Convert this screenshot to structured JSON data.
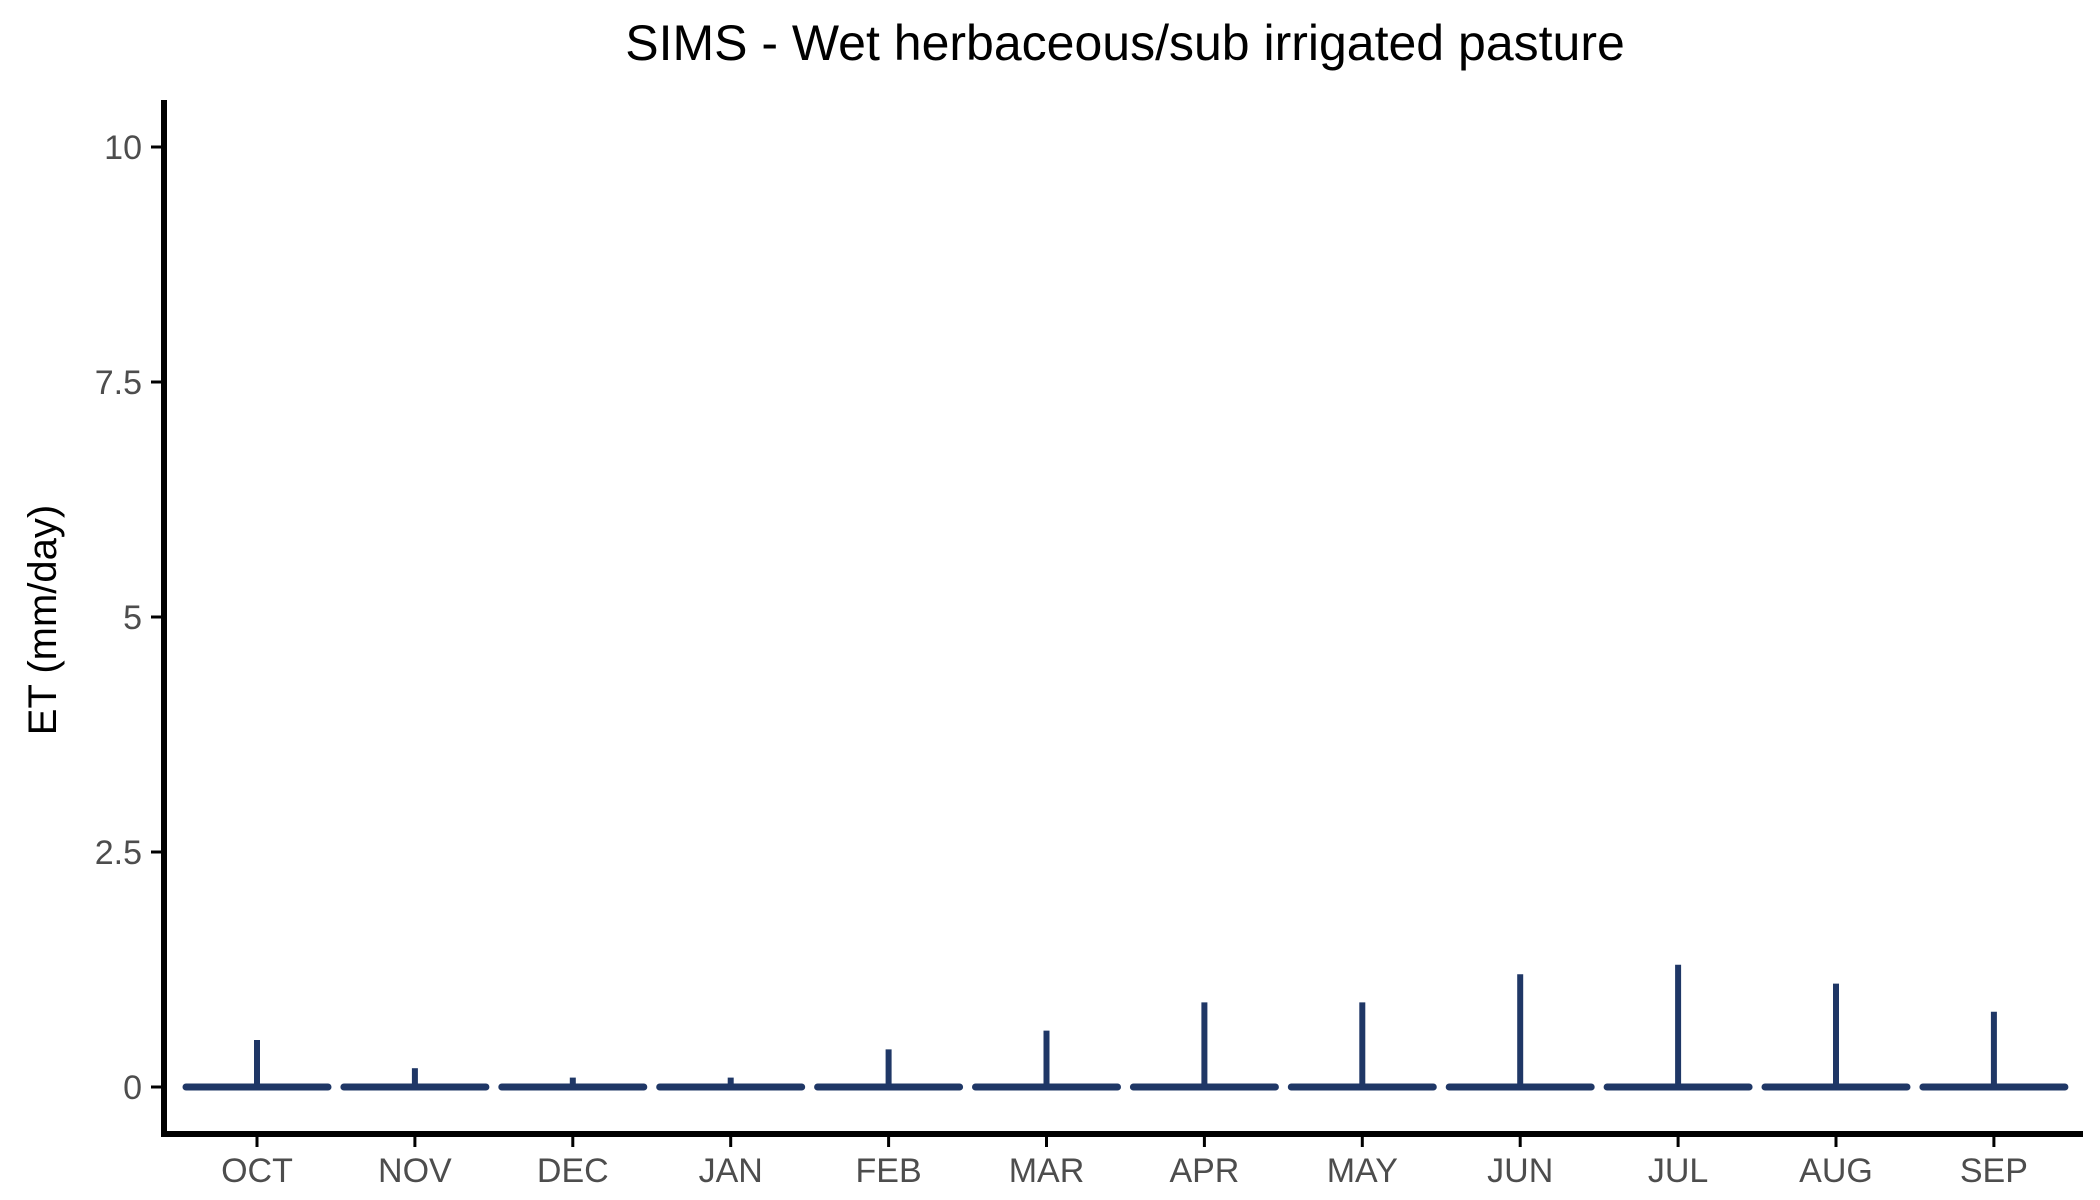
{
  "chart_data": {
    "type": "bar",
    "title": "SIMS - Wet herbaceous/sub irrigated pasture",
    "xlabel": "",
    "ylabel": "ET (mm/day)",
    "categories": [
      "OCT",
      "NOV",
      "DEC",
      "JAN",
      "FEB",
      "MAR",
      "APR",
      "MAY",
      "JUN",
      "JUL",
      "AUG",
      "SEP"
    ],
    "series": [
      {
        "values": [
          0.5,
          0.2,
          0.1,
          0.1,
          0.4,
          0.6,
          0.9,
          0.9,
          1.2,
          1.3,
          1.1,
          0.8
        ]
      }
    ],
    "baseline": 0,
    "ylim": [
      -0.5,
      10.5
    ],
    "yticks": [
      0,
      2.5,
      5,
      7.5,
      10
    ],
    "ytick_labels": [
      "0",
      "2.5",
      "5",
      "7.5",
      "10"
    ],
    "grid": false,
    "legend": "none",
    "colors": {
      "series": "#1f3766",
      "axis": "#000000",
      "tick_text": "#4d4d4d"
    }
  }
}
